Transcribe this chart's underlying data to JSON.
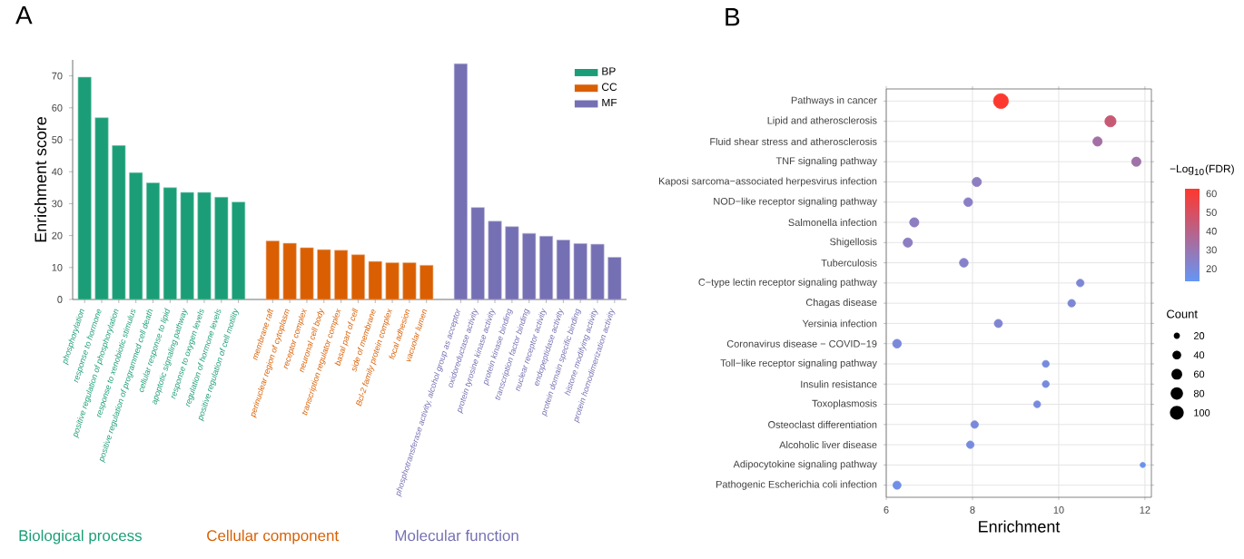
{
  "chart_data": [
    {
      "type": "bar",
      "title": "A",
      "ylabel": "Enrichment score",
      "categories": [
        "phosphorylation",
        "response to hormone",
        "positive regulation of phosphorylation",
        "response to xenobiotic stimulus",
        "positive regulation of programmed cell death",
        "cellular response to lipid",
        "apoptotic signaling pathway",
        "response to oxygen levels",
        "regulation of hormone levels",
        "positive regulation of cell motility",
        null,
        "membrane raft",
        "perinuclear region of cytoplasm",
        "receptor complex",
        "neuronal cell body",
        "transcription regulator complex",
        "basal part of cell",
        "side of membrane",
        "Bcl-2 family protein complex",
        "focal adhesion",
        "vacuolar lumen",
        null,
        "phosphotransferase activity, alcohol group as acceptor",
        "oxidoreductase activity",
        "protein tyrosine kinase activity",
        "protein kinase binding",
        "transcription factor binding",
        "nuclear receptor activity",
        "endopeptidase activity",
        "protein domain specific binding",
        "histone modifying activity",
        "protein homodimerization activity"
      ],
      "series": [
        {
          "name": "BP",
          "color": "#1b9e77",
          "values": [
            69.6,
            56.9,
            48.2,
            39.7,
            36.5,
            35,
            33.5,
            33.5,
            32,
            30.5,
            null,
            null,
            null,
            null,
            null,
            null,
            null,
            null,
            null,
            null,
            null,
            null,
            null,
            null,
            null,
            null,
            null,
            null,
            null,
            null,
            null,
            null
          ]
        },
        {
          "name": "CC",
          "color": "#d95f02",
          "values": [
            null,
            null,
            null,
            null,
            null,
            null,
            null,
            null,
            null,
            null,
            null,
            18.3,
            17.6,
            16.2,
            15.6,
            15.4,
            14,
            11.9,
            11.5,
            11.5,
            10.7,
            null,
            null,
            null,
            null,
            null,
            null,
            null,
            null,
            null,
            null,
            null
          ]
        },
        {
          "name": "MF",
          "color": "#7570b3",
          "values": [
            null,
            null,
            null,
            null,
            null,
            null,
            null,
            null,
            null,
            null,
            null,
            null,
            null,
            null,
            null,
            null,
            null,
            null,
            null,
            null,
            null,
            null,
            73.8,
            28.8,
            24.5,
            22.8,
            20.7,
            19.8,
            18.6,
            17.5,
            17.3,
            13.2
          ]
        }
      ],
      "ylim": [
        0,
        75
      ],
      "yticks": [
        0,
        10,
        20,
        30,
        40,
        50,
        60,
        70
      ],
      "legend": "top right",
      "annotations": [
        "Biological process",
        "Cellular component",
        "Molecular function"
      ]
    },
    {
      "type": "bubble",
      "title": "B",
      "xlabel": "Enrichment",
      "orientation": "horizontal",
      "categories": [
        "Pathways in cancer",
        "Lipid and atherosclerosis",
        "Fluid shear stress and atherosclerosis",
        "TNF signaling pathway",
        "Kaposi sarcoma−associated herpesvirus infection",
        "NOD−like receptor signaling pathway",
        "Salmonella infection",
        "Shigellosis",
        "Tuberculosis",
        "C−type lectin receptor signaling pathway",
        "Chagas disease",
        "Yersinia infection",
        "Coronavirus disease − COVID−19",
        "Toll−like receptor signaling pathway",
        "Insulin resistance",
        "Toxoplasmosis",
        "Osteoclast differentiation",
        "Alcoholic liver disease",
        "Adipocytokine signaling pathway",
        "Pathogenic Escherichia coli infection"
      ],
      "values": [
        8.66,
        11.2,
        10.9,
        11.8,
        8.1,
        7.9,
        6.65,
        6.5,
        7.8,
        10.5,
        10.3,
        8.6,
        6.25,
        9.7,
        9.7,
        9.5,
        8.05,
        7.95,
        11.95,
        6.25
      ],
      "sizes": [
        115,
        65,
        45,
        45,
        45,
        40,
        45,
        45,
        40,
        30,
        30,
        35,
        40,
        25,
        25,
        25,
        30,
        30,
        15,
        35
      ],
      "cvalues": [
        62,
        45,
        33,
        32,
        26,
        25,
        26,
        26,
        24,
        21,
        21,
        22,
        20,
        19,
        19,
        19,
        20,
        19,
        15,
        17
      ],
      "clim": [
        13.3,
        62.6
      ],
      "cticks": [
        20,
        30,
        40,
        50,
        60
      ],
      "clabel": "−Log$_{10}$(FDR)",
      "legend_title": "Count",
      "size_legend": [
        20,
        40,
        60,
        80,
        100
      ],
      "xlim": [
        6,
        12.15
      ],
      "xticks": [
        6,
        8,
        10,
        12
      ],
      "grid": true
    }
  ]
}
